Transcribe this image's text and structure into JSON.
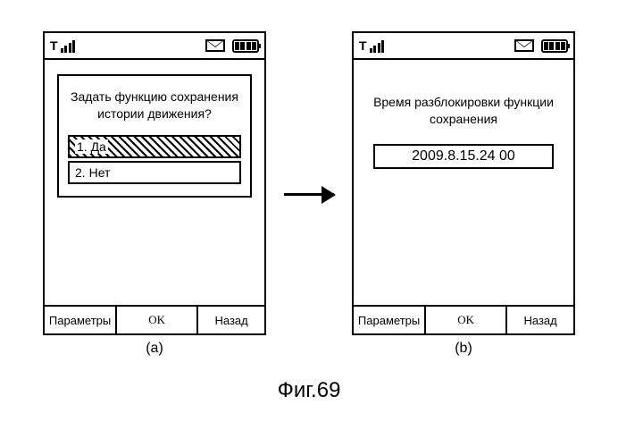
{
  "figure_label": "Фиг.69",
  "panels": {
    "a": {
      "label": "(a)",
      "dialog_title": "Задать функцию сохранения истории движения?",
      "options": [
        {
          "num": "1.",
          "text": "Да",
          "selected": true
        },
        {
          "num": "2.",
          "text": "Нет",
          "selected": false
        }
      ]
    },
    "b": {
      "label": "(b)",
      "title": "Время разблокировки функции сохранения",
      "value": "2009.8.15.24 00"
    }
  },
  "footer": {
    "left": "Параметры",
    "mid": "OK",
    "right": "Назад"
  },
  "colors": {
    "stroke": "#000000",
    "background": "#ffffff"
  }
}
